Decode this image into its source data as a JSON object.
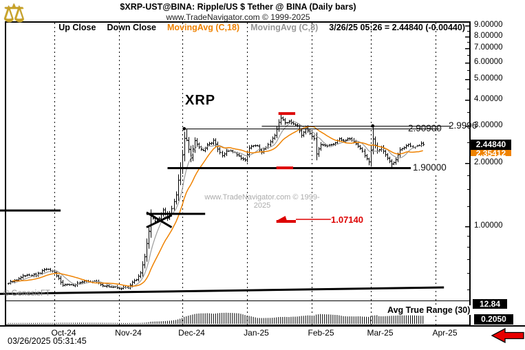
{
  "header": {
    "title": "$XRP-UST@BINA:  Ripple/US $ Tether @ BINA  (Daily bars)",
    "subtitle": "www.TradeNavigator.com © 1999-2025"
  },
  "legend": {
    "up_close": "Up Close",
    "down_close": "Down Close",
    "ma18": "MovingAvg (C,18)",
    "ma8": "MovingAvg (C,8)",
    "quote": "3/26/25 05:26 = 2.44840 (-0.00440)"
  },
  "watermark": {
    "text": "www.TradeNavigator.com © 1999-2025"
  },
  "annotations": {
    "symbol_label": "XRP",
    "resistance_label": "2.90900",
    "resistance2_label": "2.9996",
    "support_label": "1.90000",
    "red_label": "1.07140",
    "atr_label": "Avg True Range (30)",
    "genesis": "© GenesisFT"
  },
  "y_axis": {
    "price_box": "2.44840",
    "ma_box": "2.35412",
    "atr_scale_box": "12.84",
    "atr_value_box": "0.2050",
    "major_ticks": [
      {
        "label": "9.00000",
        "value": 9
      },
      {
        "label": "8.00000",
        "value": 8
      },
      {
        "label": "7.00000",
        "value": 7
      },
      {
        "label": "6.00000",
        "value": 6
      },
      {
        "label": "5.00000",
        "value": 5
      },
      {
        "label": "4.00000",
        "value": 4
      },
      {
        "label": "3.00000",
        "value": 3
      },
      {
        "label": "2.00000",
        "value": 2
      },
      {
        "label": "1.00000",
        "value": 1
      }
    ],
    "minor_ticks": [
      8.5,
      7.5,
      6.5,
      5.5,
      4.5,
      3.5,
      2.5,
      1.75,
      1.5,
      1.25,
      0.9,
      0.8,
      0.7,
      0.6,
      0.5
    ]
  },
  "x_axis": {
    "months": [
      {
        "label": "Oct-24",
        "date": "2024-10-01"
      },
      {
        "label": "Nov-24",
        "date": "2024-11-01"
      },
      {
        "label": "Dec-24",
        "date": "2024-12-01"
      },
      {
        "label": "Jan-25",
        "date": "2025-01-01"
      },
      {
        "label": "Feb-25",
        "date": "2025-02-01"
      },
      {
        "label": "Mar-25",
        "date": "2025-03-01"
      },
      {
        "label": "Apr-25",
        "date": "2025-04-01"
      }
    ]
  },
  "footer": {
    "timestamp": "03/26/2025 05:31:45"
  },
  "colors": {
    "ma18": "#EF8200",
    "ma8": "#9A9A9A",
    "bars": "#000000",
    "red_annotation": "#DD0000",
    "arrow_red": "#E80000",
    "logo_gold": "#C9A227"
  },
  "chart_data": {
    "type": "ohlc",
    "symbol": "$XRP-UST@BINA",
    "instrument": "Ripple/US $ Tether @ BINA",
    "timeframe": "Daily bars",
    "last_bar": {
      "date": "2025-03-26",
      "time": "05:26",
      "close": 2.4484,
      "change": -0.0044
    },
    "ma18_value": 2.35412,
    "ma8_note": "gray 8-period moving average of close",
    "atr30_value": 0.205,
    "y_scale": "log",
    "y_range_labeled": [
      1.0,
      9.0
    ],
    "x_range": [
      "2024-09-05",
      "2025-04-30"
    ],
    "last_close": 2.4484,
    "anchor_closes": [
      [
        "2024-08-25",
        0.555
      ],
      [
        "2024-08-30",
        0.57
      ],
      [
        "2024-09-04",
        0.535
      ],
      [
        "2024-09-09",
        0.54
      ],
      [
        "2024-09-14",
        0.565
      ],
      [
        "2024-09-18",
        0.59
      ],
      [
        "2024-09-22",
        0.585
      ],
      [
        "2024-09-27",
        0.63
      ],
      [
        "2024-10-01",
        0.6
      ],
      [
        "2024-10-05",
        0.53
      ],
      [
        "2024-10-09",
        0.525
      ],
      [
        "2024-10-14",
        0.545
      ],
      [
        "2024-10-17",
        0.55
      ],
      [
        "2024-10-21",
        0.545
      ],
      [
        "2024-10-25",
        0.52
      ],
      [
        "2024-10-29",
        0.515
      ],
      [
        "2024-11-02",
        0.508
      ],
      [
        "2024-11-05",
        0.512
      ],
      [
        "2024-11-07",
        0.545
      ],
      [
        "2024-11-09",
        0.555
      ],
      [
        "2024-11-11",
        0.6
      ],
      [
        "2024-11-13",
        0.72
      ],
      [
        "2024-11-15",
        0.95
      ],
      [
        "2024-11-16",
        1.12
      ],
      [
        "2024-11-18",
        1.06
      ],
      [
        "2024-11-20",
        1.1
      ],
      [
        "2024-11-22",
        1.2
      ],
      [
        "2024-11-24",
        1.1
      ],
      [
        "2024-11-26",
        1.22
      ],
      [
        "2024-11-28",
        1.42
      ],
      [
        "2024-11-30",
        1.9
      ],
      [
        "2024-12-01",
        2.2
      ],
      [
        "2024-12-02",
        2.62
      ],
      [
        "2024-12-03",
        2.55
      ],
      [
        "2024-12-05",
        2.12
      ],
      [
        "2024-12-07",
        2.56
      ],
      [
        "2024-12-09",
        2.38
      ],
      [
        "2024-12-11",
        2.28
      ],
      [
        "2024-12-13",
        2.42
      ],
      [
        "2024-12-16",
        2.56
      ],
      [
        "2024-12-18",
        2.32
      ],
      [
        "2024-12-20",
        2.16
      ],
      [
        "2024-12-22",
        2.26
      ],
      [
        "2024-12-24",
        2.3
      ],
      [
        "2024-12-27",
        2.2
      ],
      [
        "2024-12-29",
        2.12
      ],
      [
        "2024-12-31",
        2.06
      ],
      [
        "2025-01-02",
        2.36
      ],
      [
        "2025-01-04",
        2.42
      ],
      [
        "2025-01-06",
        2.4
      ],
      [
        "2025-01-08",
        2.26
      ],
      [
        "2025-01-10",
        2.38
      ],
      [
        "2025-01-12",
        2.52
      ],
      [
        "2025-01-14",
        2.68
      ],
      [
        "2025-01-16",
        3.12
      ],
      [
        "2025-01-17",
        3.28
      ],
      [
        "2025-01-19",
        3.1
      ],
      [
        "2025-01-21",
        3.16
      ],
      [
        "2025-01-23",
        3.08
      ],
      [
        "2025-01-25",
        3.02
      ],
      [
        "2025-01-27",
        2.72
      ],
      [
        "2025-01-29",
        2.92
      ],
      [
        "2025-01-31",
        2.78
      ],
      [
        "2025-02-02",
        2.62
      ],
      [
        "2025-02-03",
        2.22
      ],
      [
        "2025-02-05",
        2.42
      ],
      [
        "2025-02-08",
        2.4
      ],
      [
        "2025-02-11",
        2.46
      ],
      [
        "2025-02-14",
        2.58
      ],
      [
        "2025-02-17",
        2.56
      ],
      [
        "2025-02-19",
        2.62
      ],
      [
        "2025-02-21",
        2.52
      ],
      [
        "2025-02-24",
        2.36
      ],
      [
        "2025-02-26",
        2.18
      ],
      [
        "2025-02-28",
        2.02
      ],
      [
        "2025-03-02",
        2.58
      ],
      [
        "2025-03-04",
        2.28
      ],
      [
        "2025-03-06",
        2.38
      ],
      [
        "2025-03-08",
        2.2
      ],
      [
        "2025-03-11",
        1.96
      ],
      [
        "2025-03-13",
        2.08
      ],
      [
        "2025-03-15",
        2.32
      ],
      [
        "2025-03-17",
        2.36
      ],
      [
        "2025-03-19",
        2.46
      ],
      [
        "2025-03-21",
        2.36
      ],
      [
        "2025-03-23",
        2.4
      ],
      [
        "2025-03-25",
        2.46
      ],
      [
        "2025-03-26",
        2.4484
      ]
    ],
    "key_extremes": {
      "2024-12-03": {
        "high": 2.909
      },
      "2025-01-17": {
        "high": 3.4
      },
      "2025-03-02": {
        "high": 2.9996
      },
      "2025-03-11": {
        "low": 1.9
      },
      "2025-02-28": {
        "low": 1.95
      }
    },
    "levels": [
      {
        "value": 2.909,
        "label": "2.90900",
        "from": "2024-12-02",
        "to": "2025-04-03",
        "width": 1.2,
        "color": "#000"
      },
      {
        "value": 2.9996,
        "label": "2.9996",
        "from": "2025-01-08",
        "to": "2025-04-08",
        "width": 1.2,
        "color": "#000"
      },
      {
        "value": 1.9,
        "label": "1.90000",
        "from": "2024-11-24",
        "to": "2025-04-03",
        "width": 3,
        "color": "#000"
      }
    ],
    "red_level": {
      "value": 1.0714,
      "label": "1.07140",
      "marker_from": "2025-01-15",
      "marker_to": "2025-01-23",
      "line_to": "2025-02-10"
    },
    "drawings": [
      {
        "name": "left-resistance-line",
        "d1": "2024-09-05",
        "p1": 1.19,
        "d2": "2024-10-04",
        "p2": 1.19,
        "w": 3
      },
      {
        "name": "pennant-top-line",
        "d1": "2024-11-14",
        "p1": 1.147,
        "d2": "2024-12-12",
        "p2": 1.147,
        "w": 3
      },
      {
        "name": "pennant-diag-1",
        "d1": "2024-11-14",
        "p1": 1.165,
        "d2": "2024-11-26",
        "p2": 0.99,
        "w": 3
      },
      {
        "name": "pennant-diag-2",
        "d1": "2024-11-14",
        "p1": 0.99,
        "d2": "2024-11-26",
        "p2": 1.13,
        "w": 3
      },
      {
        "name": "long-trendline",
        "d1": "2024-09-05",
        "p1": 0.478,
        "d2": "2025-04-05",
        "p2": 0.513,
        "w": 3
      }
    ],
    "dots": [
      {
        "d": "2024-12-02",
        "p": 2.909
      },
      {
        "d": "2025-03-02",
        "p": 2.9996
      }
    ],
    "red_marks": [
      {
        "d1": "2025-01-16",
        "d2": "2025-01-24",
        "p": 3.435
      },
      {
        "d1": "2025-01-15",
        "d2": "2025-01-23",
        "p": 1.897
      }
    ],
    "atr_panel": {
      "indicator": "Avg True Range (30)",
      "last_value": 0.205,
      "scale_value": 12.84
    }
  }
}
